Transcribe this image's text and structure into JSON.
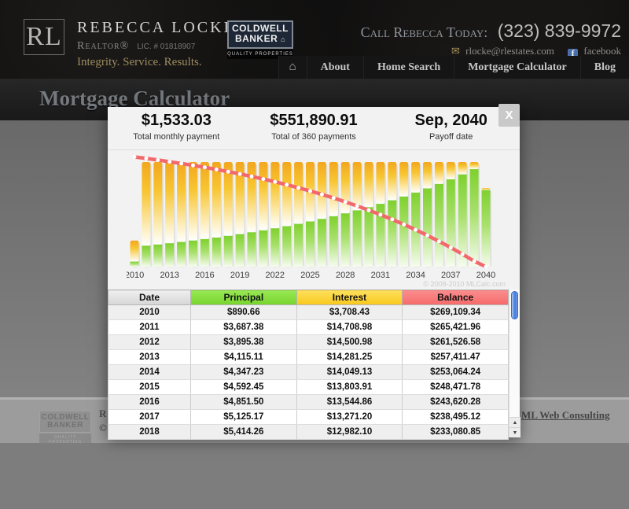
{
  "header": {
    "logo_monogram": "RL",
    "brand_name": "REBECCA LOCKE",
    "brand_subtitle": "Realtor®",
    "license": "LIC. # 01818907",
    "tagline": "Integrity. Service. Results.",
    "badge_line1": "COLDWELL",
    "badge_line2": "BANKER",
    "badge_sub": "QUALITY PROPERTIES",
    "call_label": "Call Rebecca Today:",
    "phone": "(323) 839-9972",
    "email": "rlocke@rlestates.com",
    "facebook_label": "facebook"
  },
  "nav": {
    "items": [
      "About",
      "Home Search",
      "Mortgage Calculator",
      "Blog"
    ]
  },
  "page": {
    "title": "Mortgage Calculator"
  },
  "modal": {
    "close_label": "X",
    "stats": [
      {
        "value": "$1,533.03",
        "label": "Total monthly payment"
      },
      {
        "value": "$551,890.91",
        "label": "Total of 360 payments"
      },
      {
        "value": "Sep, 2040",
        "label": "Payoff date"
      }
    ],
    "watermark": "© 2008-2010 MLCalc.com",
    "table": {
      "columns": [
        "Date",
        "Principal",
        "Interest",
        "Balance"
      ],
      "header_colors": {
        "date": "#dcdcdc",
        "principal": "#84dc3e",
        "interest": "#fbd33c",
        "balance": "#f87c7c"
      },
      "rows": [
        [
          "2010",
          "$890.66",
          "$3,708.43",
          "$269,109.34"
        ],
        [
          "2011",
          "$3,687.38",
          "$14,708.98",
          "$265,421.96"
        ],
        [
          "2012",
          "$3,895.38",
          "$14,500.98",
          "$261,526.58"
        ],
        [
          "2013",
          "$4,115.11",
          "$14,281.25",
          "$257,411.47"
        ],
        [
          "2014",
          "$4,347.23",
          "$14,049.13",
          "$253,064.24"
        ],
        [
          "2015",
          "$4,592.45",
          "$13,803.91",
          "$248,471.78"
        ],
        [
          "2016",
          "$4,851.50",
          "$13,544.86",
          "$243,620.28"
        ],
        [
          "2017",
          "$5,125.17",
          "$13,271.20",
          "$238,495.12"
        ],
        [
          "2018",
          "$5,414.26",
          "$12,982.10",
          "$233,080.85"
        ]
      ]
    }
  },
  "chart_data": {
    "type": "bar",
    "subtype": "stacked-bars-with-line",
    "x": [
      2010,
      2011,
      2012,
      2013,
      2014,
      2015,
      2016,
      2017,
      2018,
      2019,
      2020,
      2021,
      2022,
      2023,
      2024,
      2025,
      2026,
      2027,
      2028,
      2029,
      2030,
      2031,
      2032,
      2033,
      2034,
      2035,
      2036,
      2037,
      2038,
      2039,
      2040
    ],
    "xticks": [
      2010,
      2013,
      2016,
      2019,
      2022,
      2025,
      2028,
      2031,
      2034,
      2037,
      2040
    ],
    "series": [
      {
        "name": "Principal",
        "type": "bar-bottom",
        "color": "#83d231",
        "values": [
          890.66,
          3687.38,
          3895.38,
          4115.11,
          4347.23,
          4592.45,
          4851.5,
          5125.17,
          5414.26,
          5719.68,
          6042.34,
          6383.19,
          6743.27,
          7123.66,
          7525.5,
          7950.02,
          8398.48,
          8872.24,
          9372.72,
          9901.44,
          10460.0,
          11050.06,
          11673.41,
          12331.92,
          13027.58,
          13762.48,
          14538.85,
          15359.01,
          16225.44,
          17140.74,
          13478.82
        ]
      },
      {
        "name": "Interest",
        "type": "bar-top",
        "color": "#f5b32a",
        "values": [
          3708.43,
          14708.98,
          14500.98,
          14281.25,
          14049.13,
          13803.91,
          13544.86,
          13271.2,
          12982.1,
          12676.68,
          12354.02,
          12013.17,
          11653.09,
          11272.7,
          10870.86,
          10446.34,
          9997.88,
          9524.12,
          9023.64,
          8494.92,
          7936.36,
          7346.3,
          6722.95,
          6064.44,
          5368.78,
          4633.88,
          3857.51,
          3037.35,
          2170.92,
          1255.62,
          318.45
        ]
      },
      {
        "name": "Balance",
        "type": "line",
        "color": "#f2686b",
        "values": [
          269109.34,
          265421.96,
          261526.58,
          257411.47,
          253064.24,
          248471.78,
          243620.28,
          238495.12,
          233080.85,
          227361.17,
          221318.83,
          214935.64,
          208192.37,
          201068.71,
          193543.21,
          185593.19,
          177194.71,
          168322.47,
          158949.75,
          149048.31,
          138588.31,
          127538.25,
          115864.84,
          103532.92,
          90505.34,
          76742.86,
          62204.01,
          46845.0,
          30619.56,
          13478.82,
          0
        ]
      }
    ],
    "ylim_bars": [
      0,
      18396.36
    ],
    "ylim_line": [
      0,
      270000
    ],
    "grid": false,
    "legend": "none"
  },
  "footer": {
    "badge_line1": "COLDWELL",
    "badge_line2": "BANKER",
    "badge_sub": "QUALITY PROPERTIES",
    "left_fragment_1": "R",
    "left_fragment_2": "©",
    "right_link": "ML Web Consulting"
  }
}
